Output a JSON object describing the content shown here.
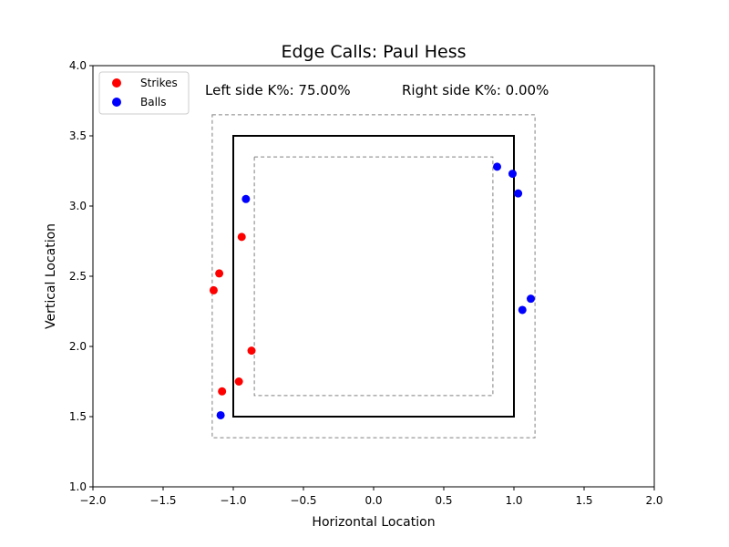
{
  "chart_data": {
    "type": "scatter",
    "title": "Edge Calls: Paul Hess",
    "xlabel": "Horizontal Location",
    "ylabel": "Vertical Location",
    "xlim": [
      -2.0,
      2.0
    ],
    "ylim": [
      1.0,
      4.0
    ],
    "xticks": [
      -2.0,
      -1.5,
      -1.0,
      -0.5,
      0.0,
      0.5,
      1.0,
      1.5,
      2.0
    ],
    "yticks": [
      1.0,
      1.5,
      2.0,
      2.5,
      3.0,
      3.5,
      4.0
    ],
    "xtick_labels": [
      "−2.0",
      "−1.5",
      "−1.0",
      "−0.5",
      "0.0",
      "0.5",
      "1.0",
      "1.5",
      "2.0"
    ],
    "ytick_labels": [
      "1.0",
      "1.5",
      "2.0",
      "2.5",
      "3.0",
      "3.5",
      "4.0"
    ],
    "grid": false,
    "legend_position": "top-left",
    "annotations": [
      "Left side K%: 75.00%",
      "Right side K%: 0.00%"
    ],
    "strike_zone": {
      "x": [
        -1.0,
        1.0
      ],
      "y": [
        1.5,
        3.5
      ]
    },
    "outer_zone": {
      "x": [
        -1.15,
        1.15
      ],
      "y": [
        1.35,
        3.65
      ]
    },
    "inner_zone": {
      "x": [
        -0.85,
        0.85
      ],
      "y": [
        1.65,
        3.35
      ]
    },
    "series": [
      {
        "name": "Strikes",
        "color": "#ff0000",
        "points": [
          {
            "x": -0.94,
            "y": 2.78
          },
          {
            "x": -1.1,
            "y": 2.52
          },
          {
            "x": -1.14,
            "y": 2.4
          },
          {
            "x": -0.87,
            "y": 1.97
          },
          {
            "x": -0.96,
            "y": 1.75
          },
          {
            "x": -1.08,
            "y": 1.68
          }
        ]
      },
      {
        "name": "Balls",
        "color": "#0000ff",
        "points": [
          {
            "x": -0.91,
            "y": 3.05
          },
          {
            "x": -1.09,
            "y": 1.51
          },
          {
            "x": 0.88,
            "y": 3.28
          },
          {
            "x": 0.99,
            "y": 3.23
          },
          {
            "x": 1.03,
            "y": 3.09
          },
          {
            "x": 1.12,
            "y": 2.34
          },
          {
            "x": 1.06,
            "y": 2.26
          }
        ]
      }
    ]
  }
}
